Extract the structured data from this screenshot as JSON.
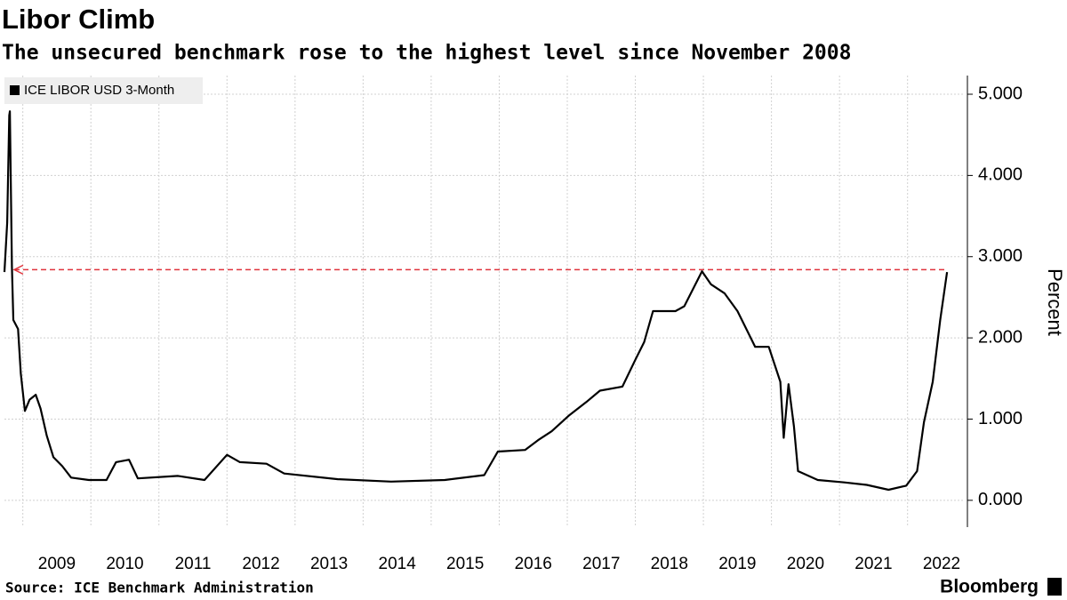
{
  "chart_data": {
    "type": "line",
    "title": "Libor Climb",
    "subtitle": "The unsecured benchmark rose to the highest level since November 2008",
    "y_label": "Percent",
    "source": "Source: ICE Benchmark Administration",
    "brand": "Bloomberg",
    "x": [
      2008.73,
      2008.77,
      2008.8,
      2008.81,
      2008.84,
      2008.86,
      2008.93,
      2008.97,
      2009.03,
      2009.1,
      2009.19,
      2009.26,
      2009.35,
      2009.45,
      2009.58,
      2009.71,
      2009.97,
      2010.23,
      2010.37,
      2010.56,
      2010.69,
      2011.28,
      2011.67,
      2012.0,
      2012.19,
      2012.58,
      2012.84,
      2013.63,
      2014.41,
      2015.2,
      2015.78,
      2015.98,
      2016.38,
      2016.57,
      2016.77,
      2017.02,
      2017.28,
      2017.48,
      2017.81,
      2018.0,
      2018.13,
      2018.26,
      2018.59,
      2018.72,
      2018.98,
      2019.11,
      2019.31,
      2019.5,
      2019.76,
      2019.96,
      2020.13,
      2020.18,
      2020.25,
      2020.33,
      2020.39,
      2020.68,
      2021.07,
      2021.4,
      2021.72,
      2021.98,
      2022.14,
      2022.24,
      2022.37,
      2022.48,
      2022.58
    ],
    "series": [
      {
        "name": "ICE LIBOR USD 3-Month",
        "color": "#000000",
        "values": [
          2.81,
          3.42,
          4.74,
          4.79,
          2.88,
          2.22,
          2.11,
          1.56,
          1.1,
          1.24,
          1.3,
          1.13,
          0.8,
          0.53,
          0.42,
          0.28,
          0.25,
          0.25,
          0.47,
          0.5,
          0.27,
          0.3,
          0.25,
          0.56,
          0.47,
          0.45,
          0.33,
          0.26,
          0.23,
          0.25,
          0.31,
          0.6,
          0.62,
          0.74,
          0.85,
          1.04,
          1.21,
          1.35,
          1.4,
          1.73,
          1.95,
          2.33,
          2.33,
          2.39,
          2.82,
          2.66,
          2.55,
          2.33,
          1.89,
          1.89,
          1.46,
          0.77,
          1.43,
          0.91,
          0.36,
          0.25,
          0.22,
          0.19,
          0.13,
          0.18,
          0.36,
          0.96,
          1.46,
          2.22,
          2.81
        ]
      }
    ],
    "reference_line": {
      "value": 2.84,
      "color": "#e0343c"
    },
    "xlim": [
      2008.73,
      2022.84
    ],
    "xticks": [
      2009,
      2010,
      2011,
      2012,
      2013,
      2014,
      2015,
      2016,
      2017,
      2018,
      2019,
      2020,
      2021,
      2022
    ],
    "ylim": [
      -0.33,
      5.23
    ],
    "yticks": [
      {
        "value": 0,
        "label": "0.000"
      },
      {
        "value": 1,
        "label": "1.000"
      },
      {
        "value": 2,
        "label": "2.000"
      },
      {
        "value": 3,
        "label": "3.000"
      },
      {
        "value": 4,
        "label": "4.000"
      },
      {
        "value": 5,
        "label": "5.000"
      }
    ],
    "grid": true
  }
}
